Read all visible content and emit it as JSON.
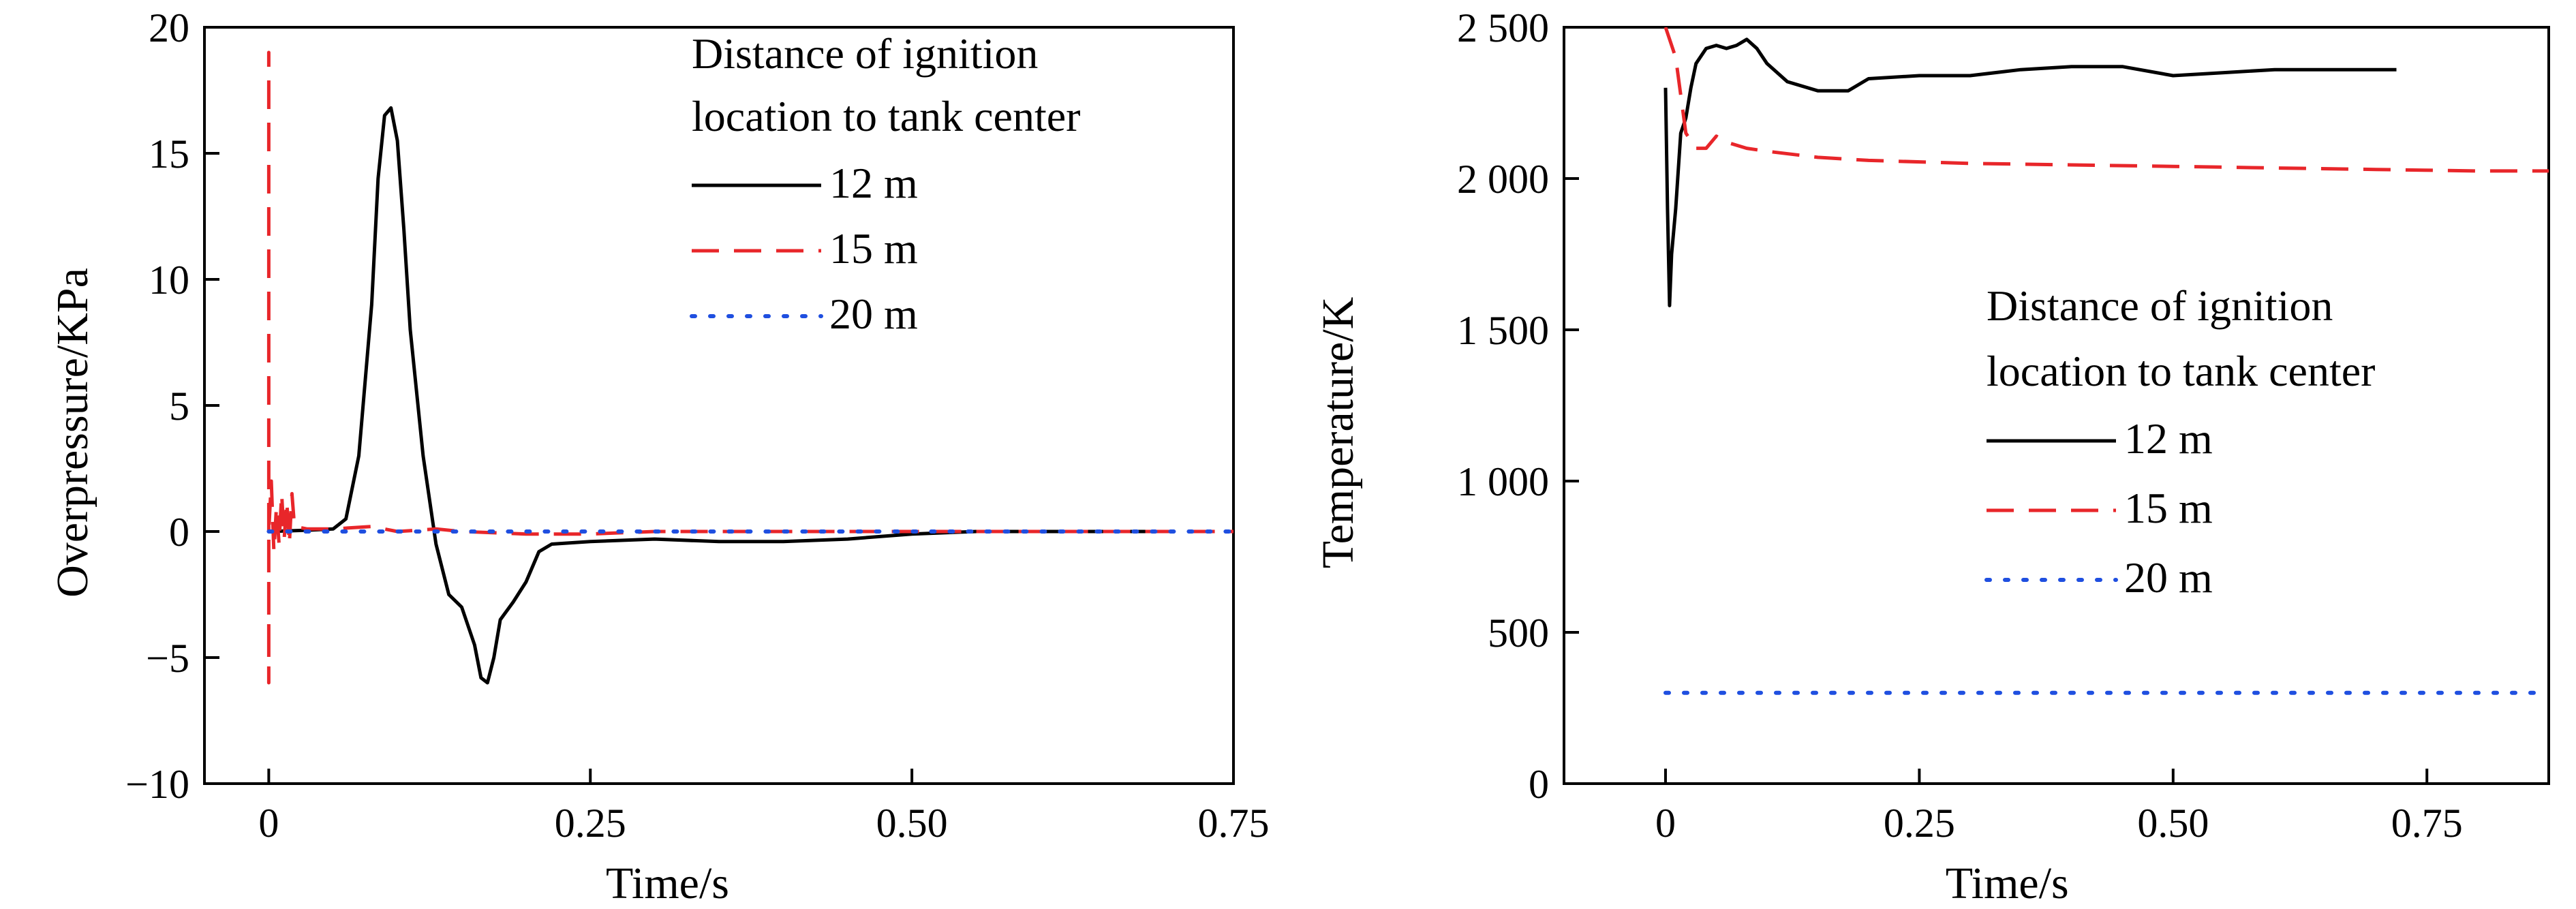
{
  "chart_data": [
    {
      "type": "line",
      "title": "",
      "xlabel": "Time/s",
      "ylabel": "Overpressure/KPa",
      "xlim": [
        -0.05,
        0.75
      ],
      "ylim": [
        -10,
        20
      ],
      "xticks": [
        0,
        0.25,
        0.5,
        0.75
      ],
      "xtick_labels": [
        "0",
        "0.25",
        "0.50",
        "0.75"
      ],
      "yticks": [
        -10,
        -5,
        0,
        5,
        10,
        15,
        20
      ],
      "ytick_labels": [
        "−10",
        "−5",
        "0",
        "5",
        "10",
        "15",
        "20"
      ],
      "grid": false,
      "legend": {
        "placement": "top-right",
        "title_lines": [
          "Distance of ignition",
          "location to tank center"
        ]
      },
      "series": [
        {
          "name": "12 m",
          "color": "#000000",
          "dash": "solid",
          "x": [
            0.0,
            0.03,
            0.05,
            0.06,
            0.07,
            0.08,
            0.085,
            0.09,
            0.095,
            0.1,
            0.105,
            0.11,
            0.12,
            0.13,
            0.14,
            0.15,
            0.16,
            0.165,
            0.17,
            0.175,
            0.18,
            0.19,
            0.2,
            0.21,
            0.22,
            0.25,
            0.3,
            0.35,
            0.4,
            0.45,
            0.5,
            0.55,
            0.6,
            0.65,
            0.7
          ],
          "y": [
            0.0,
            0.05,
            0.1,
            0.5,
            3.0,
            9.0,
            14.0,
            16.5,
            16.8,
            15.5,
            12.0,
            8.0,
            3.0,
            -0.5,
            -2.5,
            -3.0,
            -4.5,
            -5.8,
            -6.0,
            -5.0,
            -3.5,
            -2.8,
            -2.0,
            -0.8,
            -0.5,
            -0.4,
            -0.3,
            -0.4,
            -0.4,
            -0.3,
            -0.1,
            0.0,
            0.0,
            0.0,
            0.0
          ]
        },
        {
          "name": "15 m",
          "color": "#e8262a",
          "dash": "long-dash",
          "x": [
            0.0,
            0.0,
            0.0,
            0.0,
            0.002,
            0.004,
            0.006,
            0.008,
            0.01,
            0.012,
            0.014,
            0.016,
            0.018,
            0.02,
            0.03,
            0.05,
            0.08,
            0.1,
            0.13,
            0.15,
            0.2,
            0.25,
            0.3,
            0.4,
            0.5,
            0.6,
            0.7,
            0.75
          ],
          "y": [
            0.0,
            19.0,
            -6.0,
            0.0,
            2.0,
            -0.8,
            1.0,
            -0.5,
            1.5,
            -0.3,
            1.2,
            -0.5,
            1.5,
            0.2,
            0.1,
            0.1,
            0.2,
            0.0,
            0.1,
            0.0,
            -0.1,
            -0.1,
            0.0,
            0.0,
            0.0,
            0.0,
            0.0,
            0.0
          ]
        },
        {
          "name": "20 m",
          "color": "#1f4fe0",
          "dash": "dotted",
          "x": [
            0.0,
            0.75
          ],
          "y": [
            0.0,
            0.0
          ]
        }
      ]
    },
    {
      "type": "line",
      "title": "",
      "xlabel": "Time/s",
      "ylabel": "Temperature/K",
      "xlim": [
        -0.1,
        0.87
      ],
      "ylim": [
        0,
        2500
      ],
      "xticks": [
        0,
        0.25,
        0.5,
        0.75
      ],
      "xtick_labels": [
        "0",
        "0.25",
        "0.50",
        "0.75"
      ],
      "yticks": [
        0,
        500,
        1000,
        1500,
        2000,
        2500
      ],
      "ytick_labels": [
        "0",
        "500",
        "1 000",
        "1 500",
        "2 000",
        "2 500"
      ],
      "grid": false,
      "legend": {
        "placement": "center-right",
        "title_lines": [
          "Distance of ignition",
          "location to tank center"
        ]
      },
      "series": [
        {
          "name": "12 m",
          "color": "#000000",
          "dash": "solid",
          "x": [
            0.0,
            0.002,
            0.004,
            0.006,
            0.01,
            0.015,
            0.02,
            0.025,
            0.03,
            0.04,
            0.05,
            0.06,
            0.07,
            0.08,
            0.09,
            0.1,
            0.12,
            0.15,
            0.18,
            0.2,
            0.25,
            0.3,
            0.35,
            0.4,
            0.45,
            0.5,
            0.55,
            0.6,
            0.65,
            0.7,
            0.72
          ],
          "y": [
            2300,
            1900,
            1580,
            1750,
            1900,
            2150,
            2200,
            2300,
            2380,
            2430,
            2440,
            2430,
            2440,
            2460,
            2430,
            2380,
            2320,
            2290,
            2290,
            2330,
            2340,
            2340,
            2360,
            2370,
            2370,
            2340,
            2350,
            2360,
            2360,
            2360,
            2360
          ]
        },
        {
          "name": "15 m",
          "color": "#e8262a",
          "dash": "long-dash",
          "x": [
            0.0,
            0.01,
            0.02,
            0.03,
            0.04,
            0.05,
            0.06,
            0.08,
            0.1,
            0.15,
            0.2,
            0.3,
            0.4,
            0.5,
            0.6,
            0.7,
            0.8,
            0.87
          ],
          "y": [
            2500,
            2400,
            2150,
            2100,
            2100,
            2140,
            2120,
            2100,
            2090,
            2070,
            2060,
            2050,
            2045,
            2040,
            2035,
            2030,
            2025,
            2025
          ]
        },
        {
          "name": "20 m",
          "color": "#1f4fe0",
          "dash": "dotted",
          "x": [
            0.0,
            0.87
          ],
          "y": [
            300,
            300
          ]
        }
      ]
    }
  ]
}
